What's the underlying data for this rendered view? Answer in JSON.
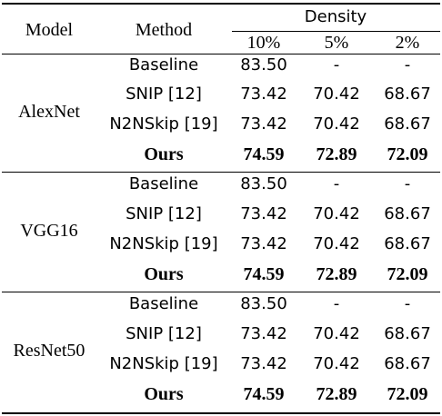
{
  "header": {
    "model": "Model",
    "method": "Method",
    "density": "Density",
    "densities": [
      "10%",
      "5%",
      "2%"
    ]
  },
  "groups": [
    {
      "model": "AlexNet",
      "rows": [
        {
          "method": "Baseline",
          "values": [
            "83.50",
            "-",
            "-"
          ]
        },
        {
          "method": "SNIP [12]",
          "values": [
            "73.42",
            "70.42",
            "68.67"
          ]
        },
        {
          "method": "N2NSkip [19]",
          "values": [
            "73.42",
            "70.42",
            "68.67"
          ]
        },
        {
          "method": "Ours",
          "values": [
            "74.59",
            "72.89",
            "72.09"
          ]
        }
      ]
    },
    {
      "model": "VGG16",
      "rows": [
        {
          "method": "Baseline",
          "values": [
            "83.50",
            "-",
            "-"
          ]
        },
        {
          "method": "SNIP [12]",
          "values": [
            "73.42",
            "70.42",
            "68.67"
          ]
        },
        {
          "method": "N2NSkip [19]",
          "values": [
            "73.42",
            "70.42",
            "68.67"
          ]
        },
        {
          "method": "Ours",
          "values": [
            "74.59",
            "72.89",
            "72.09"
          ]
        }
      ]
    },
    {
      "model": "ResNet50",
      "rows": [
        {
          "method": "Baseline",
          "values": [
            "83.50",
            "-",
            "-"
          ]
        },
        {
          "method": "SNIP [12]",
          "values": [
            "73.42",
            "70.42",
            "68.67"
          ]
        },
        {
          "method": "N2NSkip [19]",
          "values": [
            "73.42",
            "70.42",
            "68.67"
          ]
        },
        {
          "method": "Ours",
          "values": [
            "74.59",
            "72.89",
            "72.09"
          ]
        }
      ]
    }
  ]
}
